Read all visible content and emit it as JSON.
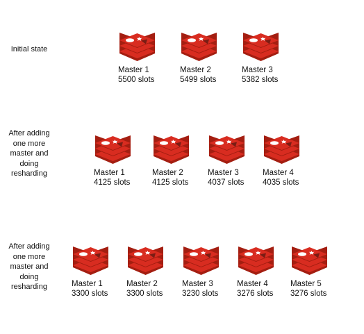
{
  "stages": [
    {
      "label": "Initial state",
      "masters": [
        {
          "name": "Master 1",
          "slots": "5500 slots"
        },
        {
          "name": "Master 2",
          "slots": "5499 slots"
        },
        {
          "name": "Master 3",
          "slots": "5382 slots"
        }
      ]
    },
    {
      "label": "After adding one more master and doing resharding",
      "masters": [
        {
          "name": "Master 1",
          "slots": "4125 slots"
        },
        {
          "name": "Master 2",
          "slots": "4125 slots"
        },
        {
          "name": "Master 3",
          "slots": "4037 slots"
        },
        {
          "name": "Master 4",
          "slots": "4035 slots"
        }
      ]
    },
    {
      "label": "After adding one more master and doing resharding",
      "masters": [
        {
          "name": "Master 1",
          "slots": "3300 slots"
        },
        {
          "name": "Master 2",
          "slots": "3300 slots"
        },
        {
          "name": "Master 3",
          "slots": "3230 slots"
        },
        {
          "name": "Master 4",
          "slots": "3276 slots"
        },
        {
          "name": "Master 5",
          "slots": "3276 slots"
        }
      ]
    }
  ],
  "colors": {
    "logo_top": "#d82c20",
    "logo_side": "#a41e11",
    "logo_mark": "#ffffff"
  },
  "icon": "redis-logo-icon"
}
